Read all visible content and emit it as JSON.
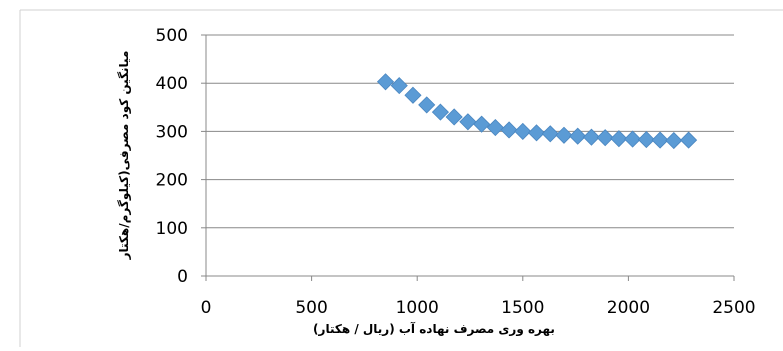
{
  "chart_data": {
    "type": "scatter",
    "title": "",
    "xlabel": "بهره وری مصرف نهاده آب (ریال / هکتار)",
    "ylabel": "میانگین کود مصرفی(کیلوگرم/هکتار",
    "xlim": [
      0,
      2500
    ],
    "ylim": [
      0,
      500
    ],
    "x_ticks": [
      0,
      500,
      1000,
      1500,
      2000,
      2500
    ],
    "y_ticks": [
      0,
      100,
      200,
      300,
      400,
      500
    ],
    "grid": "horizontal",
    "legend": "none",
    "marker": "diamond",
    "colors": {
      "marker": "#5B9BD5",
      "marker_edge": "#4A86C0",
      "grid": "#888888",
      "axis": "#888888",
      "frame": "#d0d0d0"
    },
    "series": [
      {
        "x": [
          850,
          915,
          980,
          1045,
          1110,
          1175,
          1240,
          1305,
          1370,
          1435,
          1500,
          1565,
          1630,
          1695,
          1760,
          1825,
          1890,
          1955,
          2020,
          2085,
          2150,
          2215,
          2285
        ],
        "y": [
          403,
          395,
          375,
          355,
          340,
          330,
          320,
          315,
          308,
          303,
          300,
          297,
          295,
          292,
          290,
          288,
          287,
          285,
          284,
          283,
          282,
          281,
          282
        ]
      }
    ]
  }
}
